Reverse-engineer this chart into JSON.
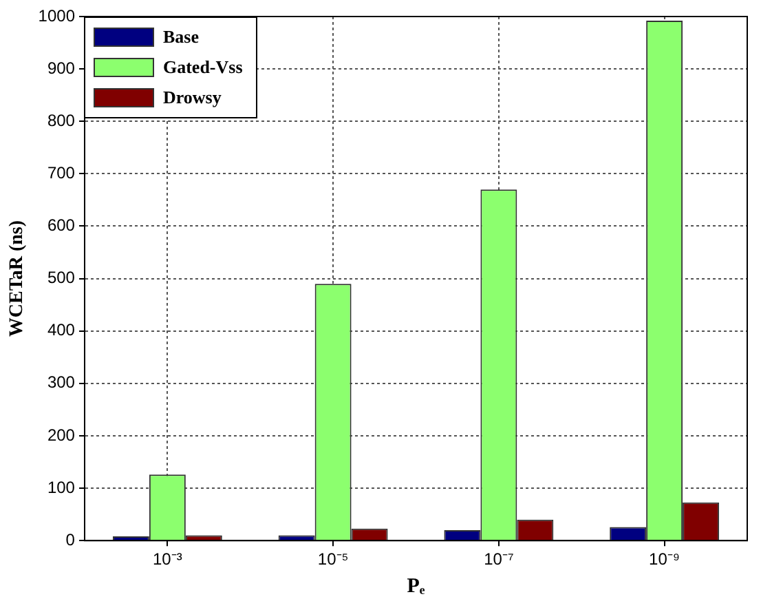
{
  "chart_data": {
    "type": "bar",
    "xlabel": "Pₑ",
    "ylabel": "WCETaR (ns)",
    "categories": [
      "10⁻³",
      "10⁻⁵",
      "10⁻⁷",
      "10⁻⁹"
    ],
    "series": [
      {
        "name": "Base",
        "color": "#000080",
        "values": [
          8,
          10,
          20,
          26
        ]
      },
      {
        "name": "Gated-Vss",
        "color": "#8cff6e",
        "values": [
          126,
          490,
          670,
          992
        ]
      },
      {
        "name": "Drowsy",
        "color": "#800000",
        "values": [
          10,
          23,
          40,
          73
        ]
      }
    ],
    "ylim": [
      0,
      1000
    ],
    "yticks": [
      0,
      100,
      200,
      300,
      400,
      500,
      600,
      700,
      800,
      900,
      1000
    ],
    "grid": true,
    "legend": "top left"
  }
}
